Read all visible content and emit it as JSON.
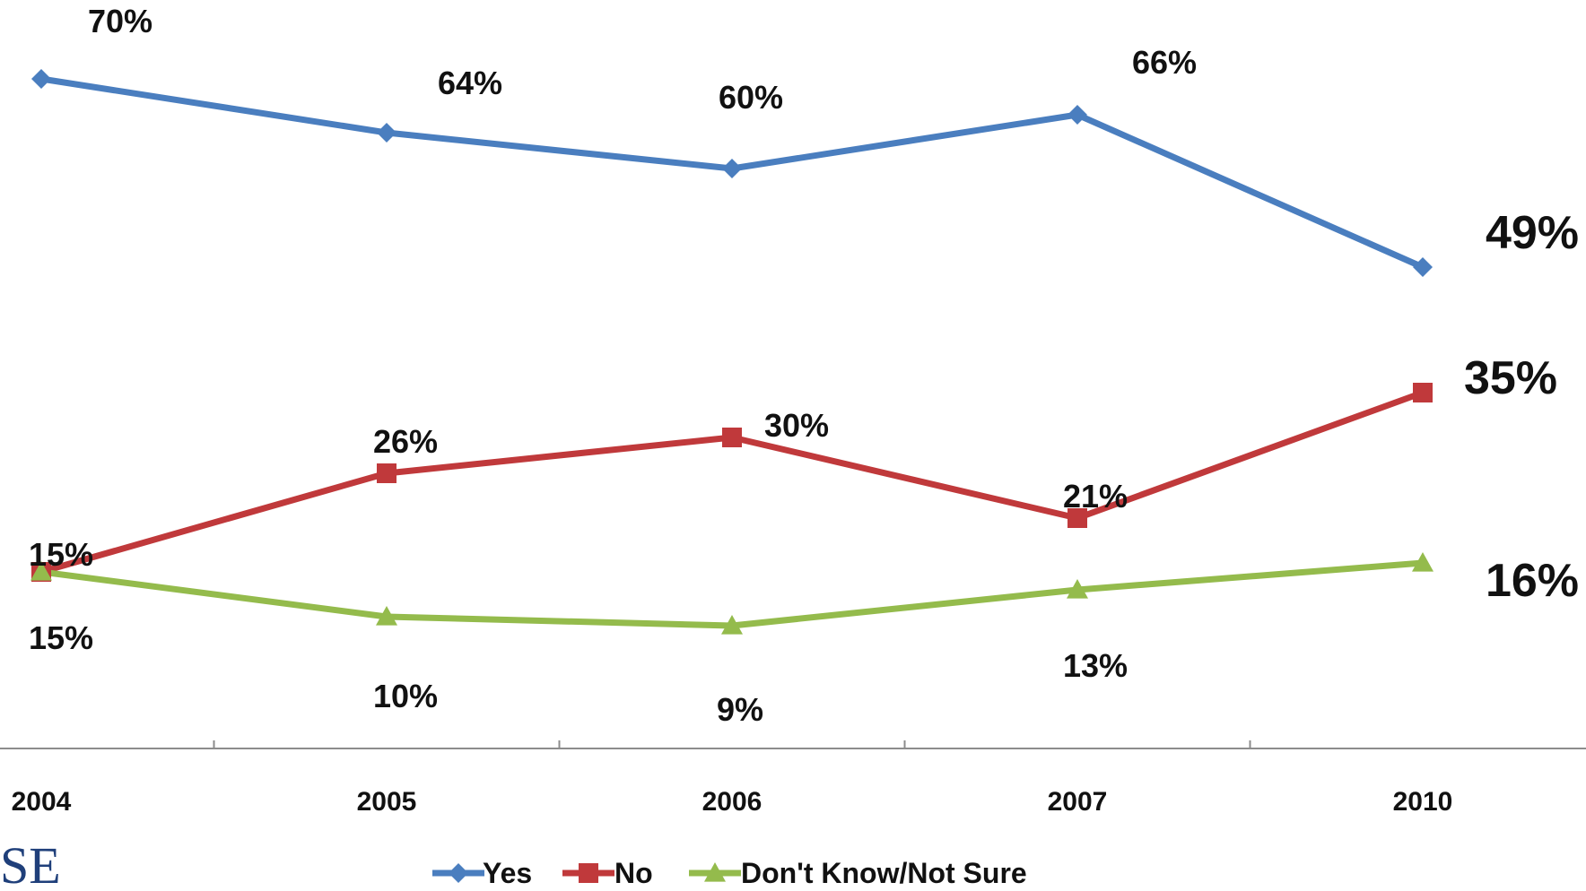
{
  "chart_data": {
    "type": "line",
    "title": "",
    "xlabel": "",
    "ylabel": "",
    "categories": [
      "2004",
      "2005",
      "2006",
      "2007",
      "2010"
    ],
    "ylim": [
      0,
      75
    ],
    "grid": false,
    "legend_position": "bottom",
    "series": [
      {
        "name": "Yes",
        "color": "#4a7ebf",
        "marker": "diamond",
        "values": [
          70,
          64,
          60,
          66,
          49
        ],
        "labels": [
          "70%",
          "64%",
          "60%",
          "66%",
          "49%"
        ]
      },
      {
        "name": "No",
        "color": "#c0393b",
        "marker": "square",
        "values": [
          15,
          26,
          30,
          21,
          35
        ],
        "labels": [
          "15%",
          "26%",
          "30%",
          "21%",
          "35%"
        ]
      },
      {
        "name": "Don't Know/Not Sure",
        "color": "#94bb4c",
        "marker": "triangle",
        "values": [
          15,
          10,
          9,
          13,
          16
        ],
        "labels": [
          "15%",
          "10%",
          "9%",
          "13%",
          "16%"
        ]
      }
    ]
  },
  "logo": {
    "text": "SE",
    "color": "#1f3f7a"
  }
}
